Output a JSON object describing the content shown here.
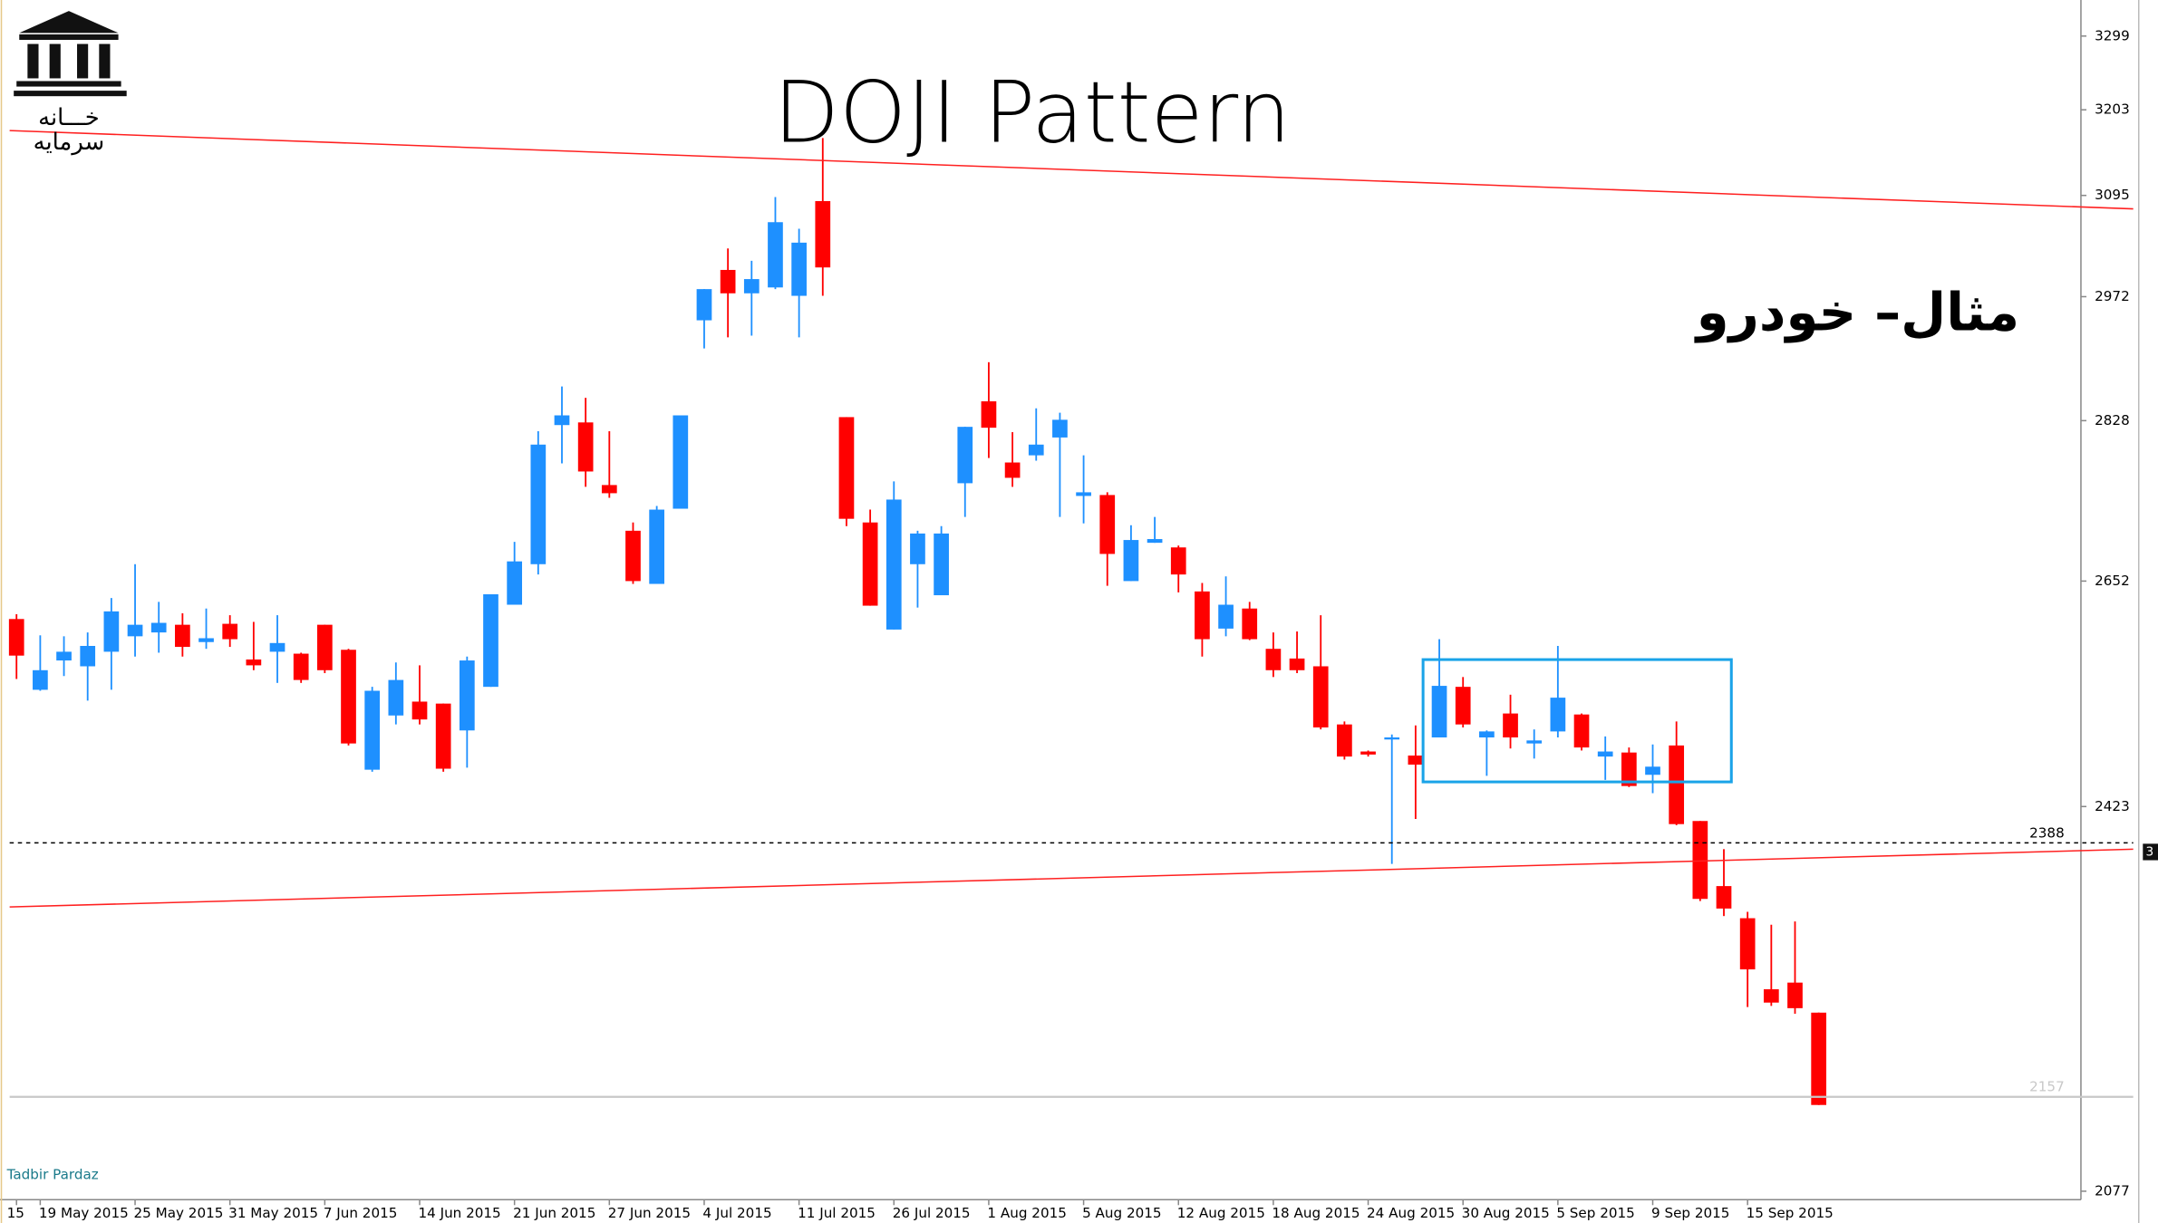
{
  "chart_data": {
    "type": "candlestick",
    "title": "DOJI Pattern",
    "annotation": "مثال– خودرو",
    "logo": [
      "خـــانه",
      "سرمایه"
    ],
    "watermark": "Tadbir Pardaz",
    "price_marker": "3",
    "log_scale": true,
    "up_color": "#1e90ff",
    "down_color": "#ff0000",
    "categories": [
      "15",
      "19 May 2015",
      null,
      null,
      null,
      "25 May 2015",
      null,
      null,
      null,
      "31 May 2015",
      null,
      null,
      null,
      "7 Jun 2015",
      null,
      null,
      null,
      "14 Jun 2015",
      null,
      null,
      null,
      "21 Jun 2015",
      null,
      null,
      null,
      "27 Jun 2015",
      null,
      null,
      null,
      "4 Jul 2015",
      null,
      null,
      null,
      "11 Jul 2015",
      null,
      null,
      null,
      "26 Jul 2015",
      null,
      null,
      null,
      "1 Aug 2015",
      null,
      null,
      null,
      "5 Aug 2015",
      null,
      null,
      null,
      "12 Aug 2015",
      null,
      null,
      null,
      "18 Aug 2015",
      null,
      null,
      null,
      "24 Aug 2015",
      null,
      null,
      null,
      "30 Aug 2015",
      null,
      null,
      null,
      "5 Sep 2015",
      null,
      null,
      null,
      "9 Sep 2015",
      null,
      null,
      null,
      "15 Sep 2015",
      null,
      null,
      null
    ],
    "open": [
      2612,
      2539,
      2569,
      2563,
      2578,
      2594,
      2598,
      2606,
      2588,
      2607,
      2570,
      2578,
      2576,
      2606,
      2580,
      2459,
      2513,
      2527,
      2525,
      2498,
      2542,
      2627,
      2670,
      2823,
      2826,
      2756,
      2706,
      2649,
      2730,
      2944,
      3004,
      2976,
      2983,
      2973,
      3088,
      2832,
      2715,
      2601,
      2670,
      2637,
      2758,
      2850,
      2781,
      2789,
      2809,
      2744,
      2745,
      2652,
      2693,
      2688,
      2641,
      2602,
      2623,
      2581,
      2571,
      2563,
      2504,
      2477,
      2490,
      2473,
      2491,
      2542,
      2491,
      2515,
      2485,
      2497,
      2514,
      2472,
      2476,
      2454,
      2483,
      2409,
      2347,
      2317,
      2252,
      2258,
      2231
    ],
    "high": [
      2617,
      2595,
      2594,
      2598,
      2634,
      2670,
      2630,
      2618,
      2623,
      2616,
      2609,
      2616,
      2577,
      2606,
      2581,
      2542,
      2567,
      2564,
      2525,
      2573,
      2638,
      2694,
      2816,
      2867,
      2854,
      2816,
      2715,
      2733,
      2834,
      2981,
      3030,
      3015,
      3093,
      3054,
      3167,
      2832,
      2729,
      2760,
      2706,
      2711,
      2821,
      2895,
      2815,
      2842,
      2837,
      2789,
      2748,
      2712,
      2721,
      2690,
      2650,
      2657,
      2630,
      2598,
      2599,
      2616,
      2507,
      2478,
      2494,
      2503,
      2591,
      2552,
      2498,
      2534,
      2499,
      2584,
      2515,
      2492,
      2481,
      2484,
      2507,
      2409,
      2382,
      2323,
      2311,
      2314,
      2231
    ],
    "low": [
      2550,
      2538,
      2553,
      2528,
      2539,
      2573,
      2577,
      2573,
      2581,
      2583,
      2559,
      2546,
      2546,
      2556,
      2483,
      2457,
      2504,
      2504,
      2457,
      2461,
      2542,
      2627,
      2659,
      2780,
      2754,
      2742,
      2649,
      2649,
      2730,
      2911,
      2924,
      2926,
      2981,
      2924,
      2973,
      2711,
      2626,
      2601,
      2624,
      2637,
      2721,
      2786,
      2754,
      2783,
      2721,
      2714,
      2647,
      2652,
      2693,
      2640,
      2573,
      2594,
      2590,
      2552,
      2556,
      2499,
      2469,
      2472,
      2368,
      2411,
      2491,
      2501,
      2453,
      2480,
      2470,
      2491,
      2478,
      2449,
      2442,
      2436,
      2405,
      2333,
      2319,
      2236,
      2237,
      2230,
      2150
    ],
    "close": [
      2574,
      2559,
      2578,
      2584,
      2620,
      2606,
      2608,
      2583,
      2592,
      2591,
      2564,
      2587,
      2549,
      2559,
      2485,
      2538,
      2549,
      2509,
      2460,
      2569,
      2638,
      2673,
      2801,
      2834,
      2771,
      2747,
      2652,
      2729,
      2834,
      2981,
      2976,
      2993,
      3062,
      3037,
      3007,
      2719,
      2626,
      2740,
      2703,
      2703,
      2821,
      2820,
      2764,
      2801,
      2829,
      2748,
      2681,
      2696,
      2697,
      2659,
      2591,
      2627,
      2591,
      2559,
      2559,
      2501,
      2472,
      2474,
      2491,
      2464,
      2543,
      2504,
      2497,
      2491,
      2488,
      2531,
      2481,
      2477,
      2443,
      2462,
      2406,
      2335,
      2326,
      2270,
      2240,
      2235,
      2150
    ],
    "ylim": [
      2070,
      3347
    ],
    "yticks": [
      3299,
      3203,
      3095,
      2972,
      2828,
      2652,
      2423,
      2077
    ],
    "levels": [
      {
        "value": 2388,
        "style": "dashed"
      },
      {
        "value": 2157,
        "style": "solid"
      }
    ]
  }
}
